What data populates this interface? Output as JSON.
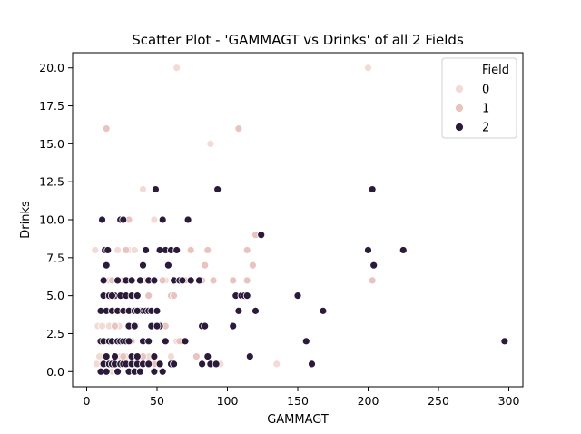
{
  "chart_data": {
    "type": "scatter",
    "title": "Scatter Plot - 'GAMMAGT vs Drinks' of all 2 Fields",
    "xlabel": "GAMMAGT",
    "ylabel": "Drinks",
    "xlim": [
      -10,
      310
    ],
    "ylim": [
      -1,
      21
    ],
    "xticks": [
      0,
      50,
      100,
      150,
      200,
      250,
      300
    ],
    "yticks": [
      0.0,
      2.5,
      5.0,
      7.5,
      10.0,
      12.5,
      15.0,
      17.5,
      20.0
    ],
    "ytick_labels": [
      "0.0",
      "2.5",
      "5.0",
      "7.5",
      "10.0",
      "12.5",
      "15.0",
      "17.5",
      "20.0"
    ],
    "grid": false,
    "legend": {
      "title": "Field",
      "placement": "top-right",
      "entries": [
        {
          "label": "0",
          "color": "#f2dad6"
        },
        {
          "label": "1",
          "color": "#e8c3bf"
        },
        {
          "label": "2",
          "color": "#2b1a3a"
        }
      ]
    },
    "series": [
      {
        "name": "0",
        "color": "#f2dad6",
        "points": [
          [
            6,
            8
          ],
          [
            8,
            3
          ],
          [
            10,
            0.5
          ],
          [
            12,
            1
          ],
          [
            14,
            0.5
          ],
          [
            16,
            3
          ],
          [
            18,
            0
          ],
          [
            20,
            2
          ],
          [
            22,
            0.5
          ],
          [
            24,
            1
          ],
          [
            7,
            0.5
          ],
          [
            9,
            1
          ],
          [
            11,
            3
          ],
          [
            13,
            0
          ],
          [
            15,
            0.5
          ],
          [
            19,
            2
          ],
          [
            23,
            3
          ],
          [
            26,
            0.5
          ],
          [
            28,
            1
          ],
          [
            30,
            0
          ],
          [
            33,
            1
          ],
          [
            35,
            3
          ],
          [
            38,
            0.5
          ],
          [
            40,
            2
          ],
          [
            44,
            1
          ],
          [
            46,
            3
          ],
          [
            52,
            0.5
          ],
          [
            56,
            2
          ],
          [
            60,
            1
          ],
          [
            64,
            2
          ],
          [
            12,
            6
          ],
          [
            16,
            6
          ],
          [
            20,
            5
          ],
          [
            24,
            4
          ],
          [
            28,
            6
          ],
          [
            32,
            4
          ],
          [
            36,
            5
          ],
          [
            42,
            6
          ],
          [
            48,
            10
          ],
          [
            56,
            6
          ],
          [
            14,
            8
          ],
          [
            22,
            8
          ],
          [
            30,
            8
          ],
          [
            34,
            8
          ],
          [
            40,
            12
          ],
          [
            64,
            20
          ],
          [
            88,
            15
          ],
          [
            95,
            0.5
          ],
          [
            135,
            0.5
          ],
          [
            200,
            20
          ]
        ]
      },
      {
        "name": "1",
        "color": "#e8c3bf",
        "points": [
          [
            14,
            16
          ],
          [
            108,
            16
          ],
          [
            30,
            10
          ],
          [
            28,
            8
          ],
          [
            18,
            6
          ],
          [
            26,
            6
          ],
          [
            38,
            6
          ],
          [
            44,
            6
          ],
          [
            54,
            6
          ],
          [
            60,
            5
          ],
          [
            66,
            6
          ],
          [
            70,
            6
          ],
          [
            74,
            8
          ],
          [
            84,
            7
          ],
          [
            82,
            6
          ],
          [
            90,
            6
          ],
          [
            104,
            6
          ],
          [
            114,
            8
          ],
          [
            118,
            7
          ],
          [
            120,
            9
          ],
          [
            114,
            6
          ],
          [
            86,
            8
          ],
          [
            22,
            4
          ],
          [
            26,
            4
          ],
          [
            34,
            4
          ],
          [
            38,
            4
          ],
          [
            44,
            5
          ],
          [
            50,
            3
          ],
          [
            56,
            3
          ],
          [
            62,
            5
          ],
          [
            70,
            2
          ],
          [
            78,
            1
          ],
          [
            48,
            0.5
          ],
          [
            32,
            2
          ],
          [
            14,
            1
          ],
          [
            20,
            3
          ],
          [
            26,
            1
          ],
          [
            40,
            1
          ],
          [
            66,
            2
          ],
          [
            203,
            6
          ]
        ]
      },
      {
        "name": "2",
        "color": "#2b1a3a",
        "points": [
          [
            10,
            4
          ],
          [
            12,
            5
          ],
          [
            14,
            4
          ],
          [
            16,
            5
          ],
          [
            18,
            4
          ],
          [
            20,
            5
          ],
          [
            22,
            4
          ],
          [
            24,
            5
          ],
          [
            26,
            4
          ],
          [
            28,
            5
          ],
          [
            30,
            4
          ],
          [
            32,
            5
          ],
          [
            34,
            4
          ],
          [
            36,
            5
          ],
          [
            38,
            4
          ],
          [
            40,
            4
          ],
          [
            42,
            4
          ],
          [
            44,
            4
          ],
          [
            46,
            4
          ],
          [
            50,
            4
          ],
          [
            10,
            2
          ],
          [
            12,
            2
          ],
          [
            14,
            1
          ],
          [
            16,
            2
          ],
          [
            18,
            2
          ],
          [
            20,
            1
          ],
          [
            22,
            2
          ],
          [
            24,
            2
          ],
          [
            26,
            2
          ],
          [
            28,
            2
          ],
          [
            30,
            2
          ],
          [
            32,
            1
          ],
          [
            36,
            1
          ],
          [
            40,
            2
          ],
          [
            44,
            2
          ],
          [
            48,
            1
          ],
          [
            52,
            3
          ],
          [
            56,
            2
          ],
          [
            60,
            0.5
          ],
          [
            62,
            0.5
          ],
          [
            10,
            0
          ],
          [
            12,
            0.5
          ],
          [
            14,
            0
          ],
          [
            16,
            0.5
          ],
          [
            18,
            0.5
          ],
          [
            20,
            0.5
          ],
          [
            22,
            0
          ],
          [
            24,
            0.5
          ],
          [
            26,
            0.5
          ],
          [
            28,
            0.5
          ],
          [
            30,
            0
          ],
          [
            32,
            0.5
          ],
          [
            34,
            0
          ],
          [
            36,
            0.5
          ],
          [
            38,
            0
          ],
          [
            40,
            0.5
          ],
          [
            44,
            0.5
          ],
          [
            48,
            0
          ],
          [
            52,
            0.5
          ],
          [
            54,
            0
          ],
          [
            11,
            10
          ],
          [
            13,
            8
          ],
          [
            15,
            8
          ],
          [
            14,
            7
          ],
          [
            12,
            6
          ],
          [
            18,
            5
          ],
          [
            22,
            6
          ],
          [
            24,
            10
          ],
          [
            26,
            10
          ],
          [
            28,
            6
          ],
          [
            30,
            3
          ],
          [
            32,
            6
          ],
          [
            34,
            3
          ],
          [
            36,
            4
          ],
          [
            38,
            6
          ],
          [
            40,
            7
          ],
          [
            42,
            8
          ],
          [
            44,
            6
          ],
          [
            46,
            3
          ],
          [
            48,
            6
          ],
          [
            49,
            12
          ],
          [
            50,
            3
          ],
          [
            52,
            8
          ],
          [
            54,
            10
          ],
          [
            56,
            8
          ],
          [
            58,
            7
          ],
          [
            60,
            8
          ],
          [
            62,
            6
          ],
          [
            64,
            8
          ],
          [
            66,
            6
          ],
          [
            68,
            6
          ],
          [
            70,
            2
          ],
          [
            72,
            10
          ],
          [
            74,
            6
          ],
          [
            80,
            6
          ],
          [
            82,
            3
          ],
          [
            84,
            3
          ],
          [
            86,
            1
          ],
          [
            88,
            0.5
          ],
          [
            92,
            0.5
          ],
          [
            93,
            12
          ],
          [
            104,
            3
          ],
          [
            106,
            5
          ],
          [
            108,
            4
          ],
          [
            110,
            5
          ],
          [
            112,
            5
          ],
          [
            114,
            5
          ],
          [
            116,
            1
          ],
          [
            120,
            4
          ],
          [
            124,
            9
          ],
          [
            150,
            5
          ],
          [
            156,
            2
          ],
          [
            160,
            0.5
          ],
          [
            168,
            4
          ],
          [
            200,
            8
          ],
          [
            203,
            12
          ],
          [
            204,
            7
          ],
          [
            225,
            8
          ],
          [
            297,
            2
          ],
          [
            82,
            0.5
          ]
        ]
      }
    ]
  }
}
